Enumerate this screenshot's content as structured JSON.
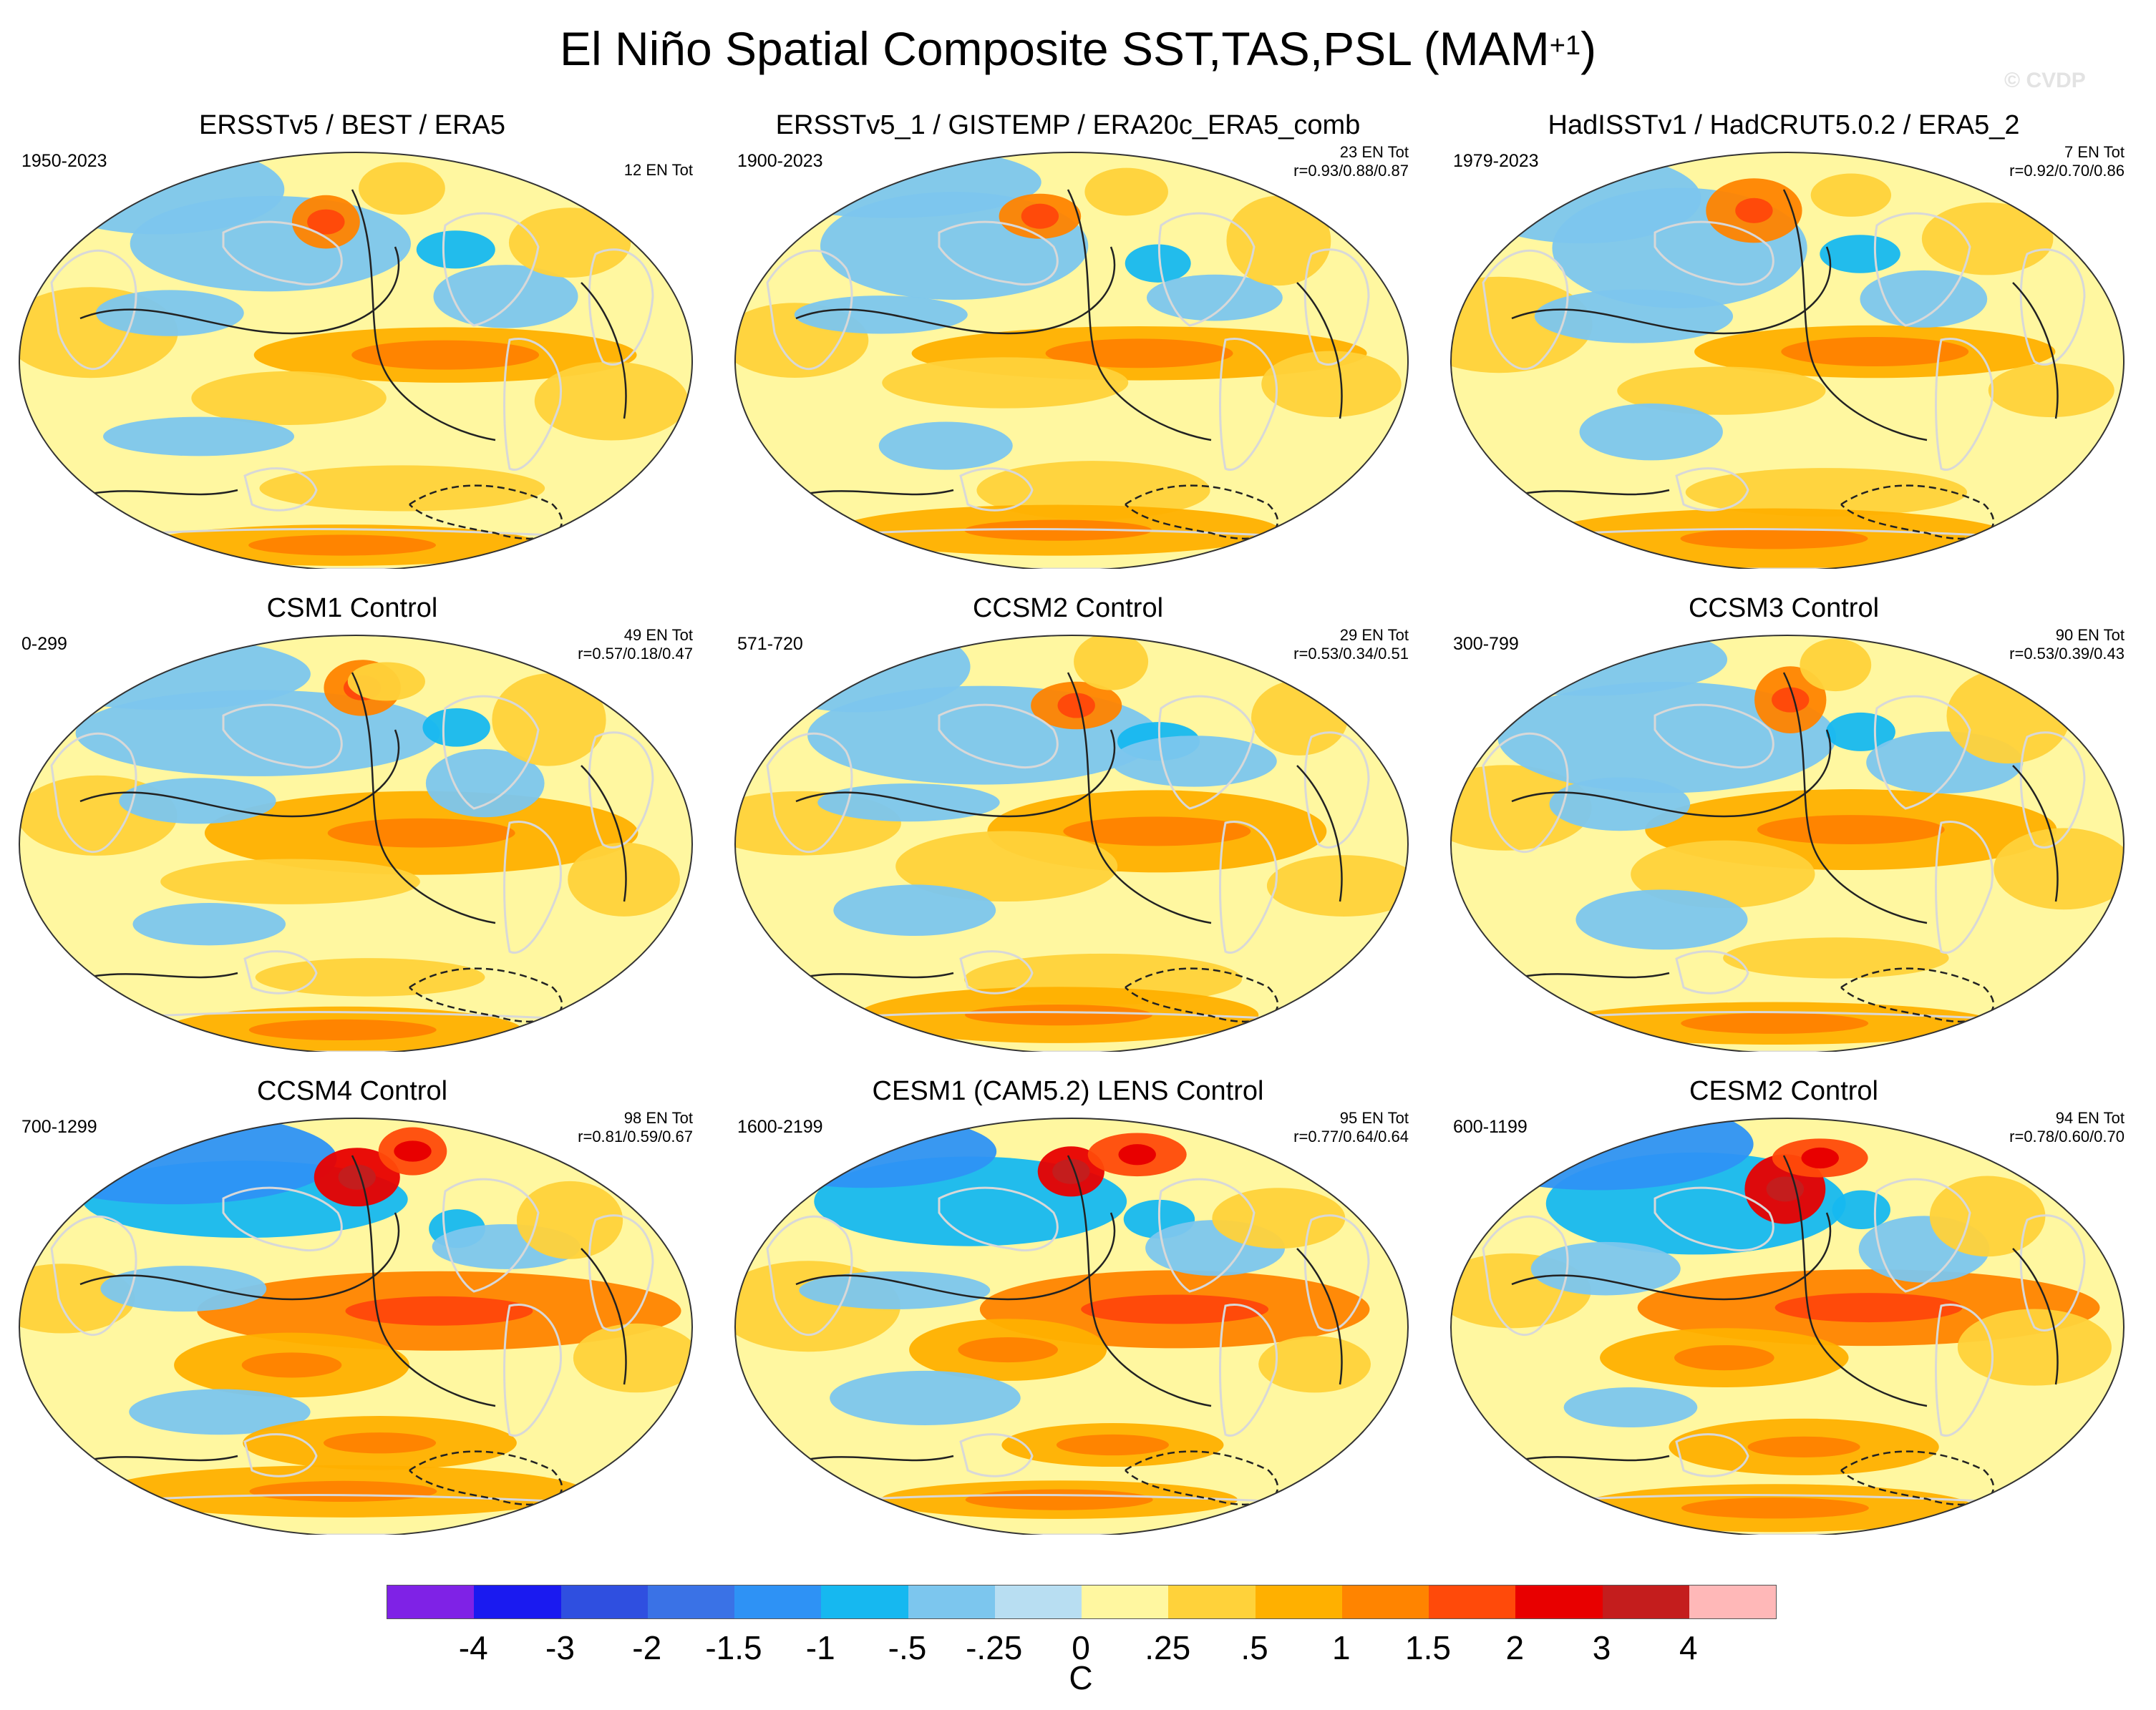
{
  "title": "El Niño Spatial Composite SST,TAS,PSL (MAM",
  "title_sup": "+1",
  "title_close": ")",
  "watermark": "© CVDP",
  "panels": [
    {
      "title": "ERSSTv5 / BEST / ERA5",
      "period": "1950-2023",
      "events": "12 EN Tot",
      "corr": ""
    },
    {
      "title": "ERSSTv5_1 / GISTEMP / ERA20c_ERA5_comb",
      "period": "1900-2023",
      "events": "23 EN Tot",
      "corr": "r=0.93/0.88/0.87"
    },
    {
      "title": "HadISSTv1 / HadCRUT5.0.2 / ERA5_2",
      "period": "1979-2023",
      "events": "7 EN Tot",
      "corr": "r=0.92/0.70/0.86"
    },
    {
      "title": "CSM1 Control",
      "period": "0-299",
      "events": "49 EN Tot",
      "corr": "r=0.57/0.18/0.47"
    },
    {
      "title": "CCSM2 Control",
      "period": "571-720",
      "events": "29 EN Tot",
      "corr": "r=0.53/0.34/0.51"
    },
    {
      "title": "CCSM3 Control",
      "period": "300-799",
      "events": "90 EN Tot",
      "corr": "r=0.53/0.39/0.43"
    },
    {
      "title": "CCSM4 Control",
      "period": "700-1299",
      "events": "98 EN Tot",
      "corr": "r=0.81/0.59/0.67"
    },
    {
      "title": "CESM1 (CAM5.2) LENS Control",
      "period": "1600-2199",
      "events": "95 EN Tot",
      "corr": "r=0.77/0.64/0.64"
    },
    {
      "title": "CESM2 Control",
      "period": "600-1199",
      "events": "94 EN Tot",
      "corr": "r=0.78/0.60/0.70"
    }
  ],
  "colorbar": {
    "colors": [
      "#7f22e6",
      "#1a1af0",
      "#2f4fe0",
      "#3a72e6",
      "#2e92f5",
      "#16b8f0",
      "#7cc6ee",
      "#b8def2",
      "#fff7a0",
      "#ffd23a",
      "#ffb000",
      "#ff8400",
      "#ff4a0a",
      "#e80000",
      "#c41d1d",
      "#ffb8b8"
    ],
    "ticks": [
      "-4",
      "-3",
      "-2",
      "-1.5",
      "-1",
      "-.5",
      "-.25",
      "0",
      ".25",
      ".5",
      "1",
      "1.5",
      "2",
      "3",
      "4"
    ],
    "unit": "C"
  }
}
